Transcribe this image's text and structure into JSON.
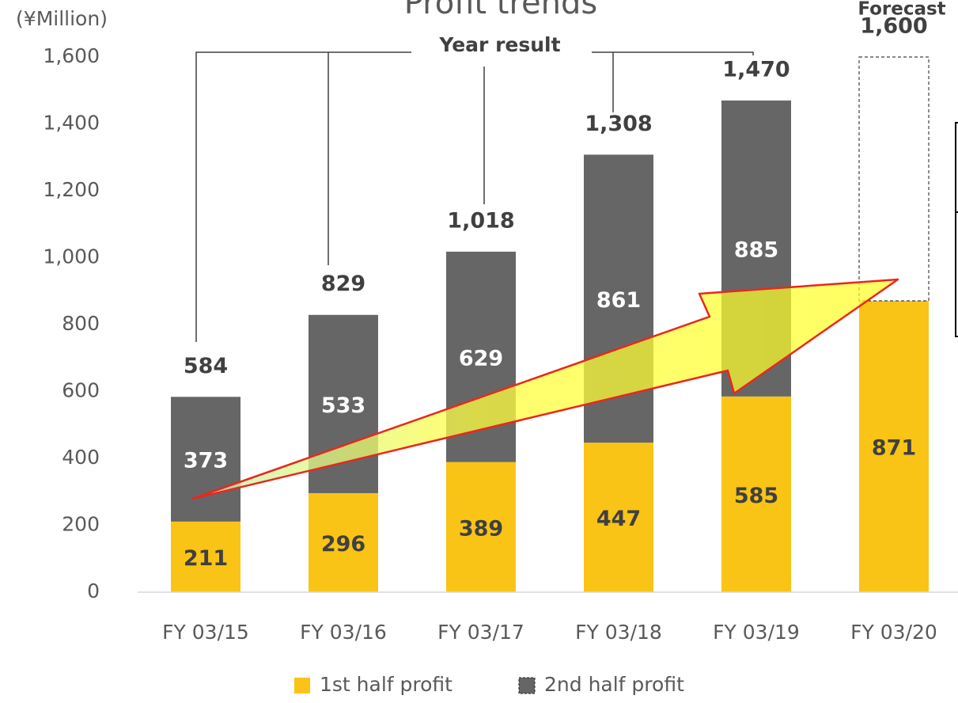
{
  "chart_data": {
    "type": "stacked_bar",
    "title": "Profit trends",
    "y_label": "(¥Million)",
    "annotations": [
      "Year result",
      "Forecast"
    ],
    "categories": [
      "FY 03/15",
      "FY 03/16",
      "FY 03/17",
      "FY 03/18",
      "FY 03/19",
      "FY 03/20"
    ],
    "series": [
      {
        "name": "1st half profit",
        "color": "#f9c416",
        "values": [
          211,
          296,
          389,
          447,
          585,
          871
        ]
      },
      {
        "name": "2nd half profit",
        "color": "#666666",
        "colors": [
          "#666666",
          "#666666",
          "#666666",
          "#666666",
          "#666666",
          "#ffffff"
        ],
        "values": [
          373,
          533,
          629,
          861,
          885,
          729
        ]
      }
    ],
    "totals": [
      584,
      829,
      1018,
      1308,
      1470,
      1600
    ],
    "total_labels": [
      "584",
      "829",
      "1,018",
      "1,308",
      "1,470",
      "1,600"
    ],
    "ylim": [
      0,
      1600
    ],
    "yticks": [
      0,
      200,
      400,
      600,
      800,
      {
        "value": 1000,
        "label": "1,000"
      },
      {
        "value": 1200,
        "label": "1,200"
      },
      {
        "value": 1400,
        "label": "1,400"
      },
      {
        "value": 1600,
        "label": "1,600"
      }
    ],
    "legend": "bottom"
  }
}
